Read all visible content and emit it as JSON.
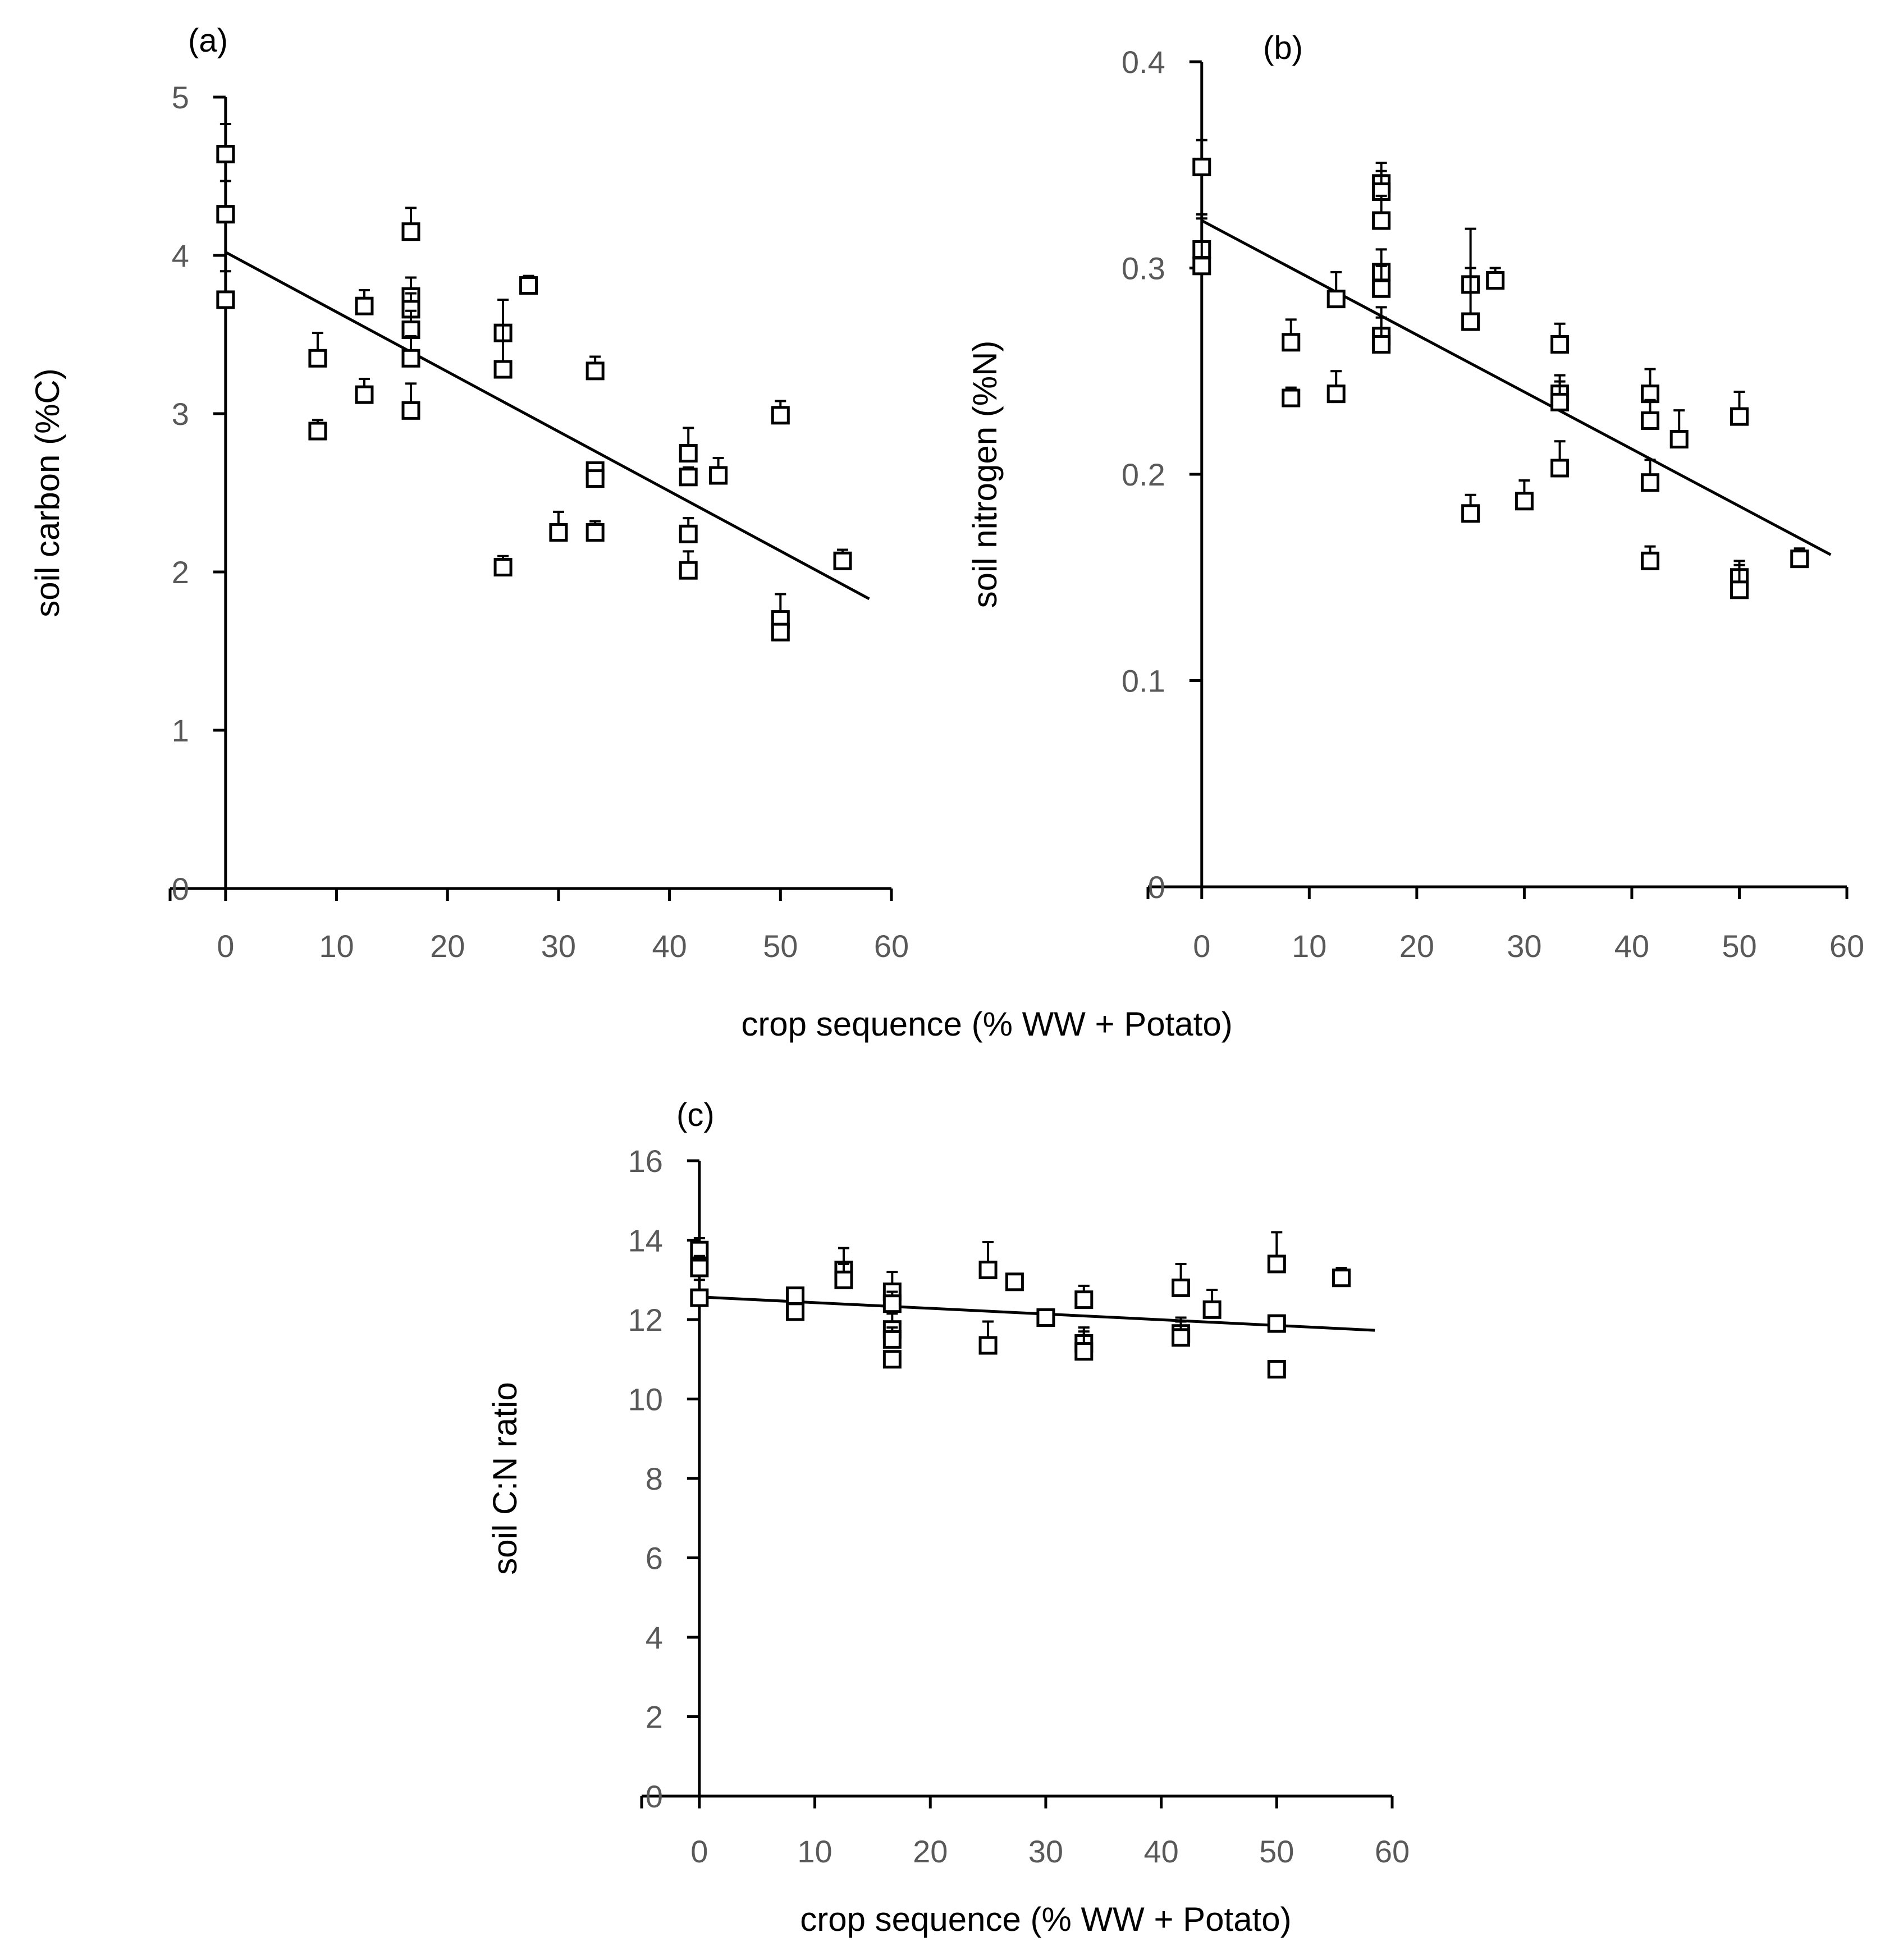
{
  "shared": {
    "xlabel": "crop sequence (% WW + Potato)",
    "xlim": [
      -5,
      60
    ],
    "xticks": [
      "0",
      "10",
      "20",
      "30",
      "40",
      "50",
      "60"
    ]
  },
  "colors": {
    "axis": "#000000",
    "tick_text": "#595959",
    "marker_fill": "#ffffff"
  },
  "chart_data": [
    {
      "id": "a",
      "type": "scatter",
      "panel_label": "(a)",
      "title": "",
      "xlabel": "crop sequence (% WW + Potato)",
      "ylabel": "soil carbon (%C)",
      "xlim": [
        -5,
        60
      ],
      "ylim": [
        0,
        5
      ],
      "xticks": [
        "0",
        "10",
        "20",
        "30",
        "40",
        "50",
        "60"
      ],
      "yticks": [
        "0",
        "1",
        "2",
        "3",
        "4",
        "5"
      ],
      "trendline": {
        "x": [
          0,
          58
        ],
        "y": [
          4.02,
          1.83
        ]
      },
      "points": [
        {
          "x": 0,
          "y": 4.64,
          "err": 0.19
        },
        {
          "x": 0,
          "y": 4.26,
          "err": 0.21
        },
        {
          "x": 0,
          "y": 3.72,
          "err": 0.18
        },
        {
          "x": 8.3,
          "y": 3.35,
          "err": 0.16
        },
        {
          "x": 8.3,
          "y": 2.89,
          "err": 0.07
        },
        {
          "x": 12.5,
          "y": 3.68,
          "err": 0.1
        },
        {
          "x": 12.5,
          "y": 3.12,
          "err": 0.1
        },
        {
          "x": 16.7,
          "y": 4.15,
          "err": 0.15
        },
        {
          "x": 16.7,
          "y": 3.74,
          "err": 0.12
        },
        {
          "x": 16.7,
          "y": 3.66,
          "err": 0.1
        },
        {
          "x": 16.7,
          "y": 3.53,
          "err": 0.12
        },
        {
          "x": 16.7,
          "y": 3.35,
          "err": 0.14
        },
        {
          "x": 16.7,
          "y": 3.02,
          "err": 0.17
        },
        {
          "x": 25,
          "y": 3.51,
          "err": 0.21
        },
        {
          "x": 25,
          "y": 3.28,
          "err": 0.28
        },
        {
          "x": 25,
          "y": 2.03,
          "err": 0.07
        },
        {
          "x": 27.3,
          "y": 3.81,
          "err": 0.06
        },
        {
          "x": 30,
          "y": 2.25,
          "err": 0.13
        },
        {
          "x": 33.3,
          "y": 3.27,
          "err": 0.09
        },
        {
          "x": 33.3,
          "y": 2.64,
          "err": 0.05
        },
        {
          "x": 33.3,
          "y": 2.59,
          "err": 0.04
        },
        {
          "x": 33.3,
          "y": 2.25,
          "err": 0.07
        },
        {
          "x": 41.7,
          "y": 2.75,
          "err": 0.16
        },
        {
          "x": 41.7,
          "y": 2.6,
          "err": 0.06
        },
        {
          "x": 41.7,
          "y": 2.24,
          "err": 0.1
        },
        {
          "x": 41.7,
          "y": 2.01,
          "err": 0.12
        },
        {
          "x": 44.4,
          "y": 2.61,
          "err": 0.11
        },
        {
          "x": 50,
          "y": 2.99,
          "err": 0.09
        },
        {
          "x": 50,
          "y": 1.7,
          "err": 0.16
        },
        {
          "x": 50,
          "y": 1.62,
          "err": 0.05
        },
        {
          "x": 55.6,
          "y": 2.07,
          "err": 0.07
        }
      ]
    },
    {
      "id": "b",
      "type": "scatter",
      "panel_label": "(b)",
      "title": "",
      "xlabel": "crop sequence (% WW + Potato)",
      "ylabel": "soil nitrogen (%N)",
      "xlim": [
        -5,
        60
      ],
      "ylim": [
        0,
        0.4
      ],
      "xticks": [
        "0",
        "10",
        "20",
        "30",
        "40",
        "50",
        "60"
      ],
      "yticks": [
        "0",
        "0.1",
        "0.2",
        "0.3",
        "0.4"
      ],
      "trendline": {
        "x": [
          0,
          58.5
        ],
        "y": [
          0.323,
          0.161
        ]
      },
      "points": [
        {
          "x": 0,
          "y": 0.349,
          "err": 0.013
        },
        {
          "x": 0,
          "y": 0.309,
          "err": 0.017
        },
        {
          "x": 0,
          "y": 0.301,
          "err": 0.023
        },
        {
          "x": 8.3,
          "y": 0.264,
          "err": 0.011
        },
        {
          "x": 8.3,
          "y": 0.237,
          "err": 0.005
        },
        {
          "x": 12.5,
          "y": 0.285,
          "err": 0.013
        },
        {
          "x": 12.5,
          "y": 0.239,
          "err": 0.011
        },
        {
          "x": 16.7,
          "y": 0.341,
          "err": 0.01
        },
        {
          "x": 16.7,
          "y": 0.337,
          "err": 0.01
        },
        {
          "x": 16.7,
          "y": 0.323,
          "err": 0.012
        },
        {
          "x": 16.7,
          "y": 0.298,
          "err": 0.011
        },
        {
          "x": 16.7,
          "y": 0.29,
          "err": 0.011
        },
        {
          "x": 16.7,
          "y": 0.267,
          "err": 0.014
        },
        {
          "x": 16.7,
          "y": 0.263,
          "err": 0.013
        },
        {
          "x": 25,
          "y": 0.292,
          "err": 0.027
        },
        {
          "x": 25,
          "y": 0.274,
          "err": 0.026
        },
        {
          "x": 25,
          "y": 0.181,
          "err": 0.009
        },
        {
          "x": 27.3,
          "y": 0.294,
          "err": 0.006
        },
        {
          "x": 30,
          "y": 0.187,
          "err": 0.01
        },
        {
          "x": 33.3,
          "y": 0.263,
          "err": 0.01
        },
        {
          "x": 33.3,
          "y": 0.239,
          "err": 0.009
        },
        {
          "x": 33.3,
          "y": 0.235,
          "err": 0.01
        },
        {
          "x": 33.3,
          "y": 0.203,
          "err": 0.013
        },
        {
          "x": 41.7,
          "y": 0.239,
          "err": 0.012
        },
        {
          "x": 41.7,
          "y": 0.226,
          "err": 0.01
        },
        {
          "x": 41.7,
          "y": 0.196,
          "err": 0.011
        },
        {
          "x": 41.7,
          "y": 0.158,
          "err": 0.007
        },
        {
          "x": 44.4,
          "y": 0.217,
          "err": 0.014
        },
        {
          "x": 50,
          "y": 0.228,
          "err": 0.012
        },
        {
          "x": 50,
          "y": 0.15,
          "err": 0.008
        },
        {
          "x": 50,
          "y": 0.144,
          "err": 0.012
        },
        {
          "x": 55.6,
          "y": 0.159,
          "err": 0.005
        }
      ]
    },
    {
      "id": "c",
      "type": "scatter",
      "panel_label": "(c)",
      "title": "",
      "xlabel": "crop sequence (% WW + Potato)",
      "ylabel": "soil C:N ratio",
      "xlim": [
        -5,
        60
      ],
      "ylim": [
        0,
        16
      ],
      "xticks": [
        "0",
        "10",
        "20",
        "30",
        "40",
        "50",
        "60"
      ],
      "yticks": [
        "0",
        "2",
        "4",
        "6",
        "8",
        "10",
        "12",
        "14",
        "16"
      ],
      "trendline": {
        "x": [
          0,
          58.5
        ],
        "y": [
          12.57,
          11.73
        ]
      },
      "points": [
        {
          "x": 0,
          "y": 13.75,
          "err": 0.3
        },
        {
          "x": 0,
          "y": 13.3,
          "err": 0.3
        },
        {
          "x": 0,
          "y": 12.55,
          "err": 0.45
        },
        {
          "x": 8.3,
          "y": 12.6,
          "err": 0.2
        },
        {
          "x": 8.3,
          "y": 12.2,
          "err": 0.2
        },
        {
          "x": 12.5,
          "y": 13.25,
          "err": 0.55
        },
        {
          "x": 12.5,
          "y": 13.0,
          "err": 0.4
        },
        {
          "x": 16.7,
          "y": 12.7,
          "err": 0.5
        },
        {
          "x": 16.7,
          "y": 12.4,
          "err": 0.3
        },
        {
          "x": 16.7,
          "y": 11.75,
          "err": 0.4
        },
        {
          "x": 16.7,
          "y": 11.5,
          "err": 0.3
        },
        {
          "x": 16.7,
          "y": 11.0,
          "err": 0.2
        },
        {
          "x": 25,
          "y": 13.25,
          "err": 0.7
        },
        {
          "x": 25,
          "y": 11.35,
          "err": 0.6
        },
        {
          "x": 27.3,
          "y": 12.95,
          "err": 0.1
        },
        {
          "x": 30,
          "y": 12.05,
          "err": 0.2
        },
        {
          "x": 33.3,
          "y": 12.5,
          "err": 0.35
        },
        {
          "x": 33.3,
          "y": 11.4,
          "err": 0.4
        },
        {
          "x": 33.3,
          "y": 11.2,
          "err": 0.5
        },
        {
          "x": 41.7,
          "y": 12.8,
          "err": 0.6
        },
        {
          "x": 41.7,
          "y": 11.65,
          "err": 0.4
        },
        {
          "x": 41.7,
          "y": 11.55,
          "err": 0.4
        },
        {
          "x": 44.4,
          "y": 12.25,
          "err": 0.5
        },
        {
          "x": 50,
          "y": 13.4,
          "err": 0.8
        },
        {
          "x": 50,
          "y": 11.9,
          "err": 0.2
        },
        {
          "x": 50,
          "y": 10.75,
          "err": 0.1
        },
        {
          "x": 55.6,
          "y": 13.05,
          "err": 0.25
        }
      ]
    }
  ]
}
